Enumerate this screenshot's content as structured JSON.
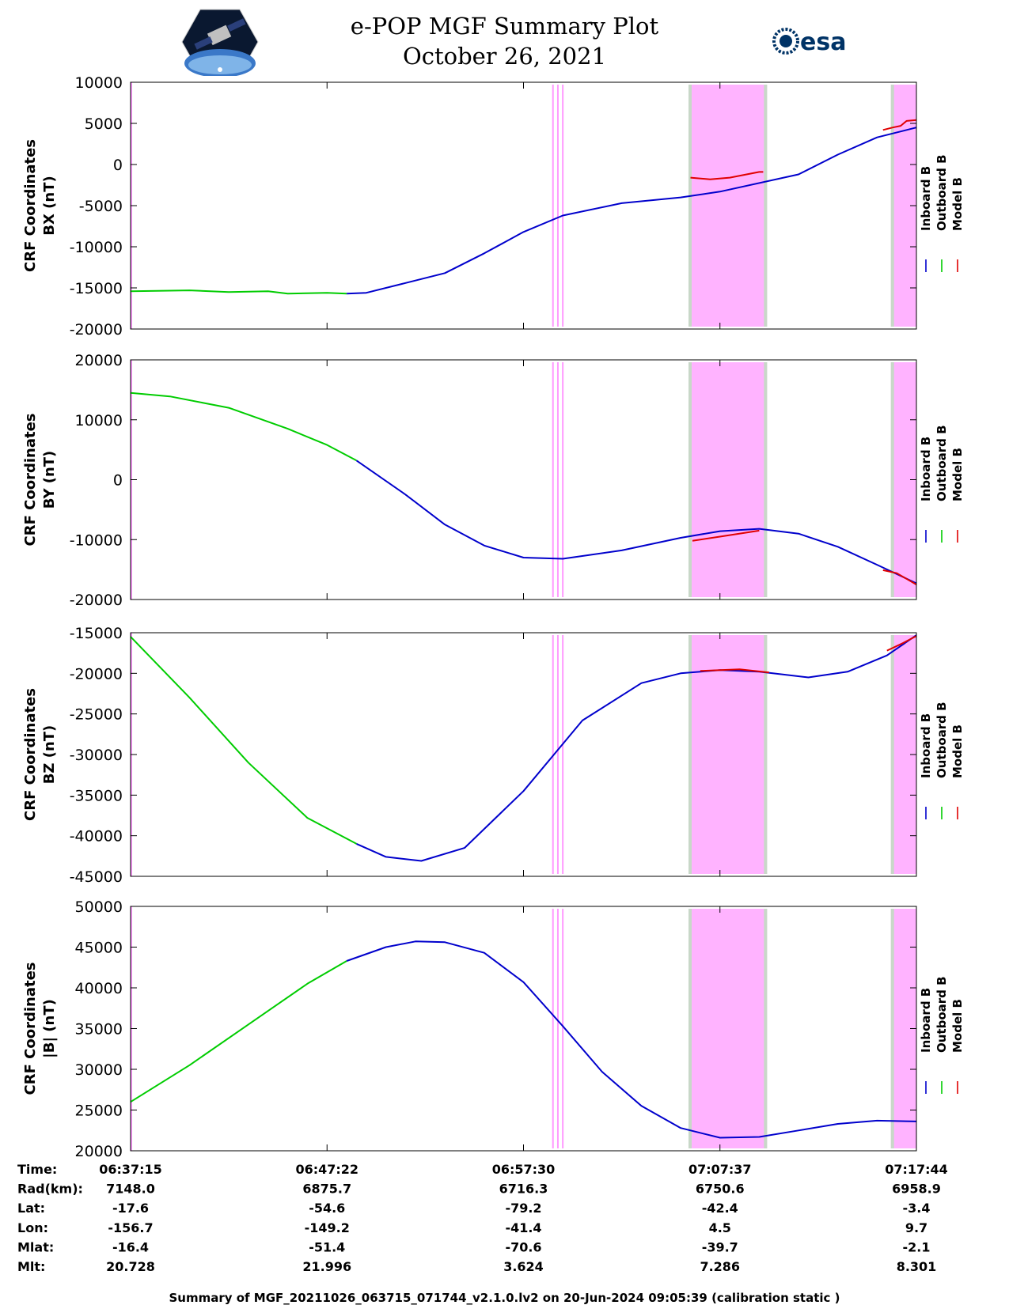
{
  "header": {
    "title_line1": "e-POP MGF Summary Plot",
    "title_line2": "October 26, 2021",
    "left_logo": "cassiope-satellite-logo",
    "right_logo_text": "esa"
  },
  "legend": {
    "labels": [
      "Inboard B",
      "Outboard B",
      "Model B"
    ],
    "colors": [
      "#0000cc",
      "#00cc00",
      "#e00000"
    ]
  },
  "chart_data": [
    {
      "type": "line",
      "ylabel_line1": "CRF Coordinates",
      "ylabel_line2": "BX (nT)",
      "ylim": [
        -20000,
        10000
      ],
      "yticks": [
        10000,
        5000,
        0,
        -5000,
        -10000,
        -15000,
        -20000
      ],
      "series": [
        {
          "name": "Outboard B",
          "color": "#00cc00",
          "points": [
            [
              0,
              -15400
            ],
            [
              3,
              -15300
            ],
            [
              5,
              -15500
            ],
            [
              7,
              -15400
            ],
            [
              8,
              -15700
            ],
            [
              10,
              -15600
            ],
            [
              11,
              -15700
            ]
          ]
        },
        {
          "name": "Inboard B",
          "color": "#0000cc",
          "points": [
            [
              11,
              -15700
            ],
            [
              12,
              -15600
            ],
            [
              14,
              -14400
            ],
            [
              16,
              -13200
            ],
            [
              18,
              -10800
            ],
            [
              20,
              -8200
            ],
            [
              22,
              -6200
            ],
            [
              25,
              -4700
            ],
            [
              28,
              -4000
            ],
            [
              30,
              -3300
            ],
            [
              34,
              -1200
            ],
            [
              36,
              1200
            ],
            [
              38,
              3300
            ],
            [
              40,
              4500
            ]
          ]
        },
        {
          "name": "Model B",
          "color": "#e00000",
          "points": [
            [
              28.5,
              -1600
            ],
            [
              29.5,
              -1800
            ],
            [
              30.5,
              -1600
            ],
            [
              32,
              -900
            ],
            [
              32.2,
              -900
            ]
          ]
        },
        {
          "name": "Model B",
          "color": "#e00000",
          "points": [
            [
              38.3,
              4200
            ],
            [
              38.8,
              4500
            ],
            [
              39.2,
              4700
            ],
            [
              39.5,
              5300
            ],
            [
              40,
              5400
            ]
          ]
        }
      ]
    },
    {
      "type": "line",
      "ylabel_line1": "CRF Coordinates",
      "ylabel_line2": "BY (nT)",
      "ylim": [
        -20000,
        20000
      ],
      "yticks": [
        20000,
        10000,
        0,
        -10000,
        -20000
      ],
      "series": [
        {
          "name": "Outboard B",
          "color": "#00cc00",
          "points": [
            [
              0,
              14500
            ],
            [
              2,
              13900
            ],
            [
              5,
              12000
            ],
            [
              8,
              8500
            ],
            [
              10,
              5800
            ],
            [
              11.5,
              3200
            ]
          ]
        },
        {
          "name": "Inboard B",
          "color": "#0000cc",
          "points": [
            [
              11.5,
              3200
            ],
            [
              14,
              -2500
            ],
            [
              16,
              -7500
            ],
            [
              18,
              -11000
            ],
            [
              20,
              -13000
            ],
            [
              22,
              -13200
            ],
            [
              25,
              -11800
            ],
            [
              28,
              -9700
            ],
            [
              30,
              -8600
            ],
            [
              32,
              -8200
            ],
            [
              34,
              -9000
            ],
            [
              36,
              -11200
            ],
            [
              38,
              -14200
            ],
            [
              40,
              -17300
            ]
          ]
        },
        {
          "name": "Model B",
          "color": "#e00000",
          "points": [
            [
              28.6,
              -10200
            ],
            [
              30,
              -9500
            ],
            [
              32,
              -8500
            ]
          ]
        },
        {
          "name": "Model B",
          "color": "#e00000",
          "points": [
            [
              38.3,
              -15100
            ],
            [
              39,
              -15600
            ],
            [
              40,
              -17500
            ]
          ]
        }
      ]
    },
    {
      "type": "line",
      "ylabel_line1": "CRF Coordinates",
      "ylabel_line2": "BZ (nT)",
      "ylim": [
        -45000,
        -15000
      ],
      "yticks": [
        -15000,
        -20000,
        -25000,
        -30000,
        -35000,
        -40000,
        -45000
      ],
      "series": [
        {
          "name": "Outboard B",
          "color": "#00cc00",
          "points": [
            [
              0,
              -15500
            ],
            [
              3,
              -23000
            ],
            [
              6,
              -31000
            ],
            [
              9,
              -37800
            ],
            [
              11.5,
              -41000
            ]
          ]
        },
        {
          "name": "Inboard B",
          "color": "#0000cc",
          "points": [
            [
              11.5,
              -41000
            ],
            [
              13,
              -42600
            ],
            [
              14.8,
              -43100
            ],
            [
              17,
              -41500
            ],
            [
              20,
              -34500
            ],
            [
              23,
              -25800
            ],
            [
              26,
              -21200
            ],
            [
              28,
              -20000
            ],
            [
              30,
              -19600
            ],
            [
              32,
              -19800
            ],
            [
              34.5,
              -20500
            ],
            [
              36.5,
              -19800
            ],
            [
              38.5,
              -17800
            ],
            [
              40,
              -15300
            ]
          ]
        },
        {
          "name": "Model B",
          "color": "#e00000",
          "points": [
            [
              29,
              -19700
            ],
            [
              31,
              -19500
            ],
            [
              32.5,
              -19900
            ]
          ]
        },
        {
          "name": "Model B",
          "color": "#e00000",
          "points": [
            [
              38.5,
              -17200
            ],
            [
              39.3,
              -16300
            ],
            [
              40,
              -15400
            ]
          ]
        }
      ]
    },
    {
      "type": "line",
      "ylabel_line1": "CRF Coordinates",
      "ylabel_line2": "|B| (nT)",
      "ylim": [
        20000,
        50000
      ],
      "yticks": [
        50000,
        45000,
        40000,
        35000,
        30000,
        25000,
        20000
      ],
      "series": [
        {
          "name": "Outboard B",
          "color": "#00cc00",
          "points": [
            [
              0,
              26000
            ],
            [
              3,
              30500
            ],
            [
              6,
              35500
            ],
            [
              9,
              40500
            ],
            [
              11,
              43300
            ]
          ]
        },
        {
          "name": "Inboard B",
          "color": "#0000cc",
          "points": [
            [
              11,
              43300
            ],
            [
              13,
              45000
            ],
            [
              14.5,
              45700
            ],
            [
              16,
              45600
            ],
            [
              18,
              44300
            ],
            [
              20,
              40700
            ],
            [
              22,
              35300
            ],
            [
              24,
              29700
            ],
            [
              26,
              25500
            ],
            [
              28,
              22800
            ],
            [
              30,
              21600
            ],
            [
              32,
              21700
            ],
            [
              34,
              22500
            ],
            [
              36,
              23300
            ],
            [
              38,
              23700
            ],
            [
              40,
              23600
            ]
          ]
        }
      ]
    }
  ],
  "x_axis": {
    "xlim": [
      0,
      40
    ],
    "ticks": [
      0,
      10,
      20,
      30,
      40
    ]
  },
  "shading": [
    {
      "kind": "thin-lines",
      "x": [
        21.5,
        21.75,
        22.0
      ],
      "color": "#ff99ff"
    },
    {
      "kind": "band",
      "x0": 28.4,
      "x1": 32.4,
      "color": "#ffb3ff",
      "edge_color": "#c8d8c8"
    },
    {
      "kind": "band",
      "x0": 38.7,
      "x1": 40,
      "color": "#ffb3ff",
      "edge_color": "#c8d8c8"
    }
  ],
  "info_table": {
    "row_labels": [
      "Time:",
      "Rad(km):",
      "Lat:",
      "Lon:",
      "Mlat:",
      "Mlt:"
    ],
    "columns": [
      [
        "06:37:15",
        "7148.0",
        "-17.6",
        "-156.7",
        "-16.4",
        "20.728"
      ],
      [
        "06:47:22",
        "6875.7",
        "-54.6",
        "-149.2",
        "-51.4",
        "21.996"
      ],
      [
        "06:57:30",
        "6716.3",
        "-79.2",
        "-41.4",
        "-70.6",
        "3.624"
      ],
      [
        "07:07:37",
        "6750.6",
        "-42.4",
        "4.5",
        "-39.7",
        "7.286"
      ],
      [
        "07:17:44",
        "6958.9",
        "-3.4",
        "9.7",
        "-2.1",
        "8.301"
      ]
    ]
  },
  "footer": {
    "text": "Summary of MGF_20211026_063715_071744_v2.1.0.lv2 on 20-Jun-2024 09:05:39 (calibration static )"
  }
}
